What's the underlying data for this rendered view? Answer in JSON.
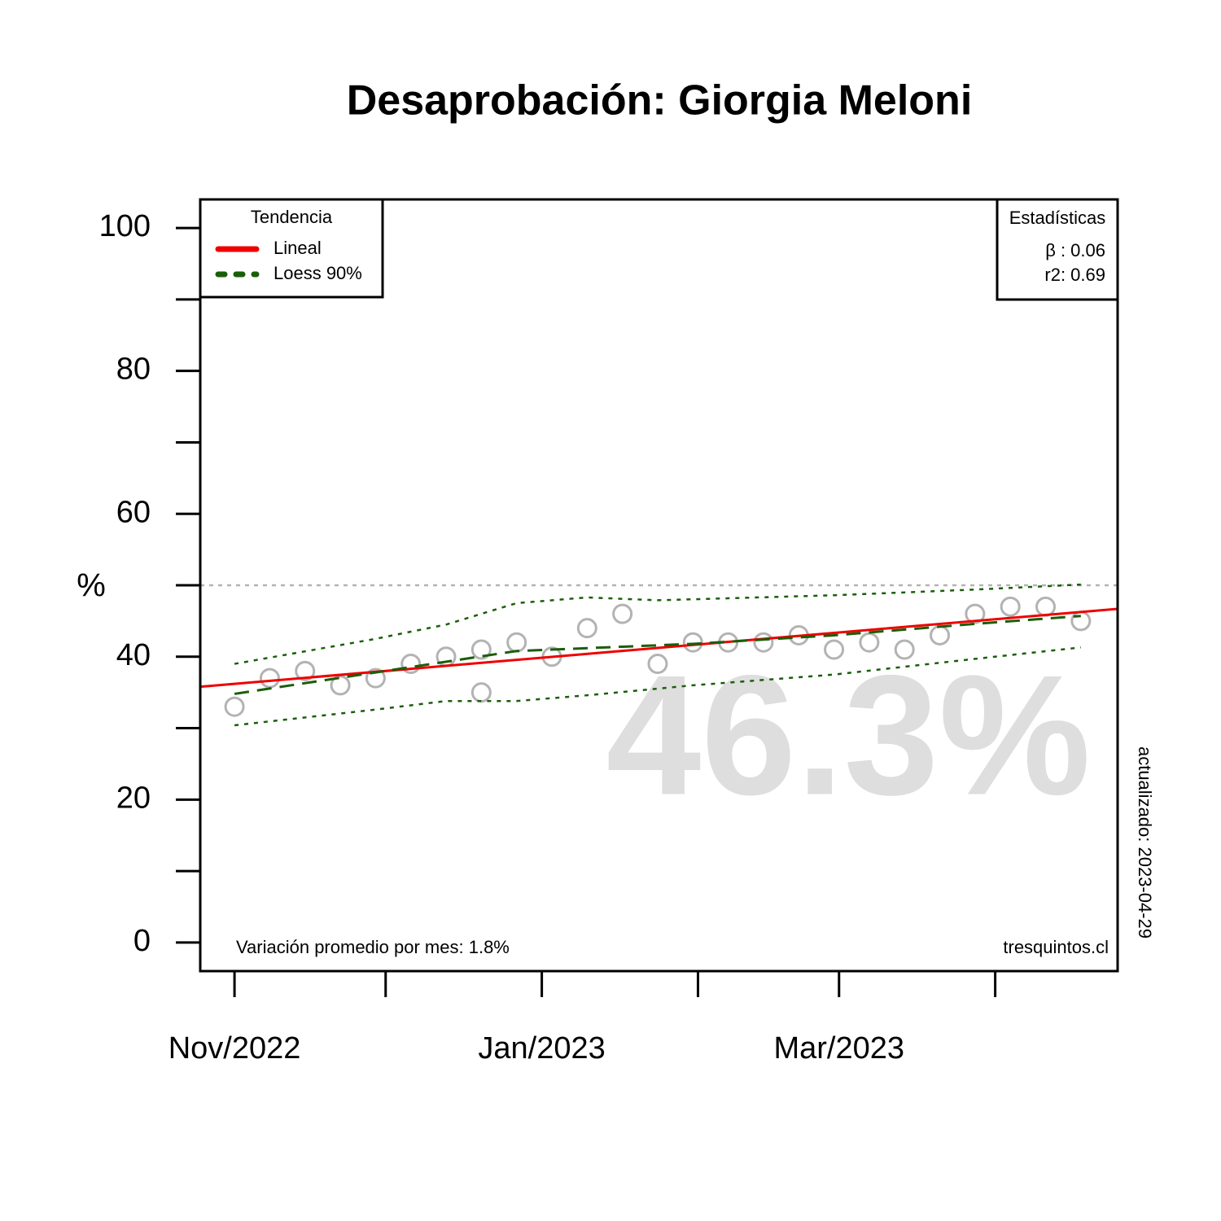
{
  "chart_data": {
    "type": "scatter",
    "title": "Desaprobación: Giorgia Meloni",
    "y_label": "%",
    "xlim": [
      -6.8,
      175.3
    ],
    "ylim": [
      -4,
      104
    ],
    "xticks": [
      {
        "value": 0,
        "label": "Nov/2022"
      },
      {
        "value": 30,
        "label": null
      },
      {
        "value": 61,
        "label": "Jan/2023"
      },
      {
        "value": 92,
        "label": null
      },
      {
        "value": 120,
        "label": "Mar/2023"
      },
      {
        "value": 151,
        "label": null
      }
    ],
    "yticks": [
      0,
      {
        "value": 10,
        "label": null
      },
      20,
      {
        "value": 30,
        "label": null
      },
      40,
      {
        "value": 50,
        "label": null
      },
      60,
      {
        "value": 70,
        "label": null
      },
      80,
      {
        "value": 90,
        "label": null
      },
      100
    ],
    "reference_line": 50,
    "legend_title": "Tendencia",
    "legend_position": "top-left",
    "series": [
      {
        "kind": "points",
        "color": "#b3b3b3",
        "x": [
          0,
          7,
          14,
          21,
          28,
          35,
          42,
          49,
          49,
          56,
          63,
          70,
          77,
          84,
          91,
          98,
          105,
          112,
          119,
          126,
          133,
          140,
          147,
          154,
          161,
          168
        ],
        "values": [
          33,
          37,
          38,
          36,
          37,
          39,
          40,
          41,
          35,
          42,
          40,
          44,
          46,
          39,
          42,
          42,
          42,
          43,
          41,
          42,
          41,
          43,
          46,
          47,
          47,
          45
        ]
      },
      {
        "name": "Lineal",
        "kind": "solid",
        "color": "#ee0000",
        "x": [
          -6.8,
          175.3
        ],
        "values": [
          35.8,
          46.7
        ]
      },
      {
        "name": "Loess 90%",
        "kind": "dashed",
        "color": "#1a5e0a",
        "x": [
          0,
          28,
          56,
          63,
          91,
          119,
          147,
          168
        ],
        "values": [
          34.8,
          37.8,
          40.8,
          41.0,
          41.8,
          43.0,
          44.6,
          45.7
        ]
      },
      {
        "kind": "dotted",
        "color": "#1a5e0a",
        "x": [
          0,
          28,
          42,
          56,
          70,
          84,
          119,
          147,
          168
        ],
        "values": [
          39,
          42.5,
          44.5,
          47.5,
          48.3,
          47.9,
          48.6,
          49.4,
          50.1
        ]
      },
      {
        "kind": "dotted",
        "color": "#1a5e0a",
        "x": [
          0,
          28,
          42,
          56,
          70,
          91,
          119,
          147,
          168
        ],
        "values": [
          30.4,
          32.6,
          33.8,
          33.8,
          34.6,
          36.0,
          37.5,
          39.7,
          41.3
        ]
      }
    ],
    "stats_title": "Estadísticas",
    "stats": [
      "β : 0.06",
      "r2: 0.69"
    ],
    "watermark": "46.3%",
    "note_left": "Variación promedio por mes: 1.8%",
    "note_right": "tresquintos.cl",
    "updated": "actualizado: 2023-04-29"
  }
}
